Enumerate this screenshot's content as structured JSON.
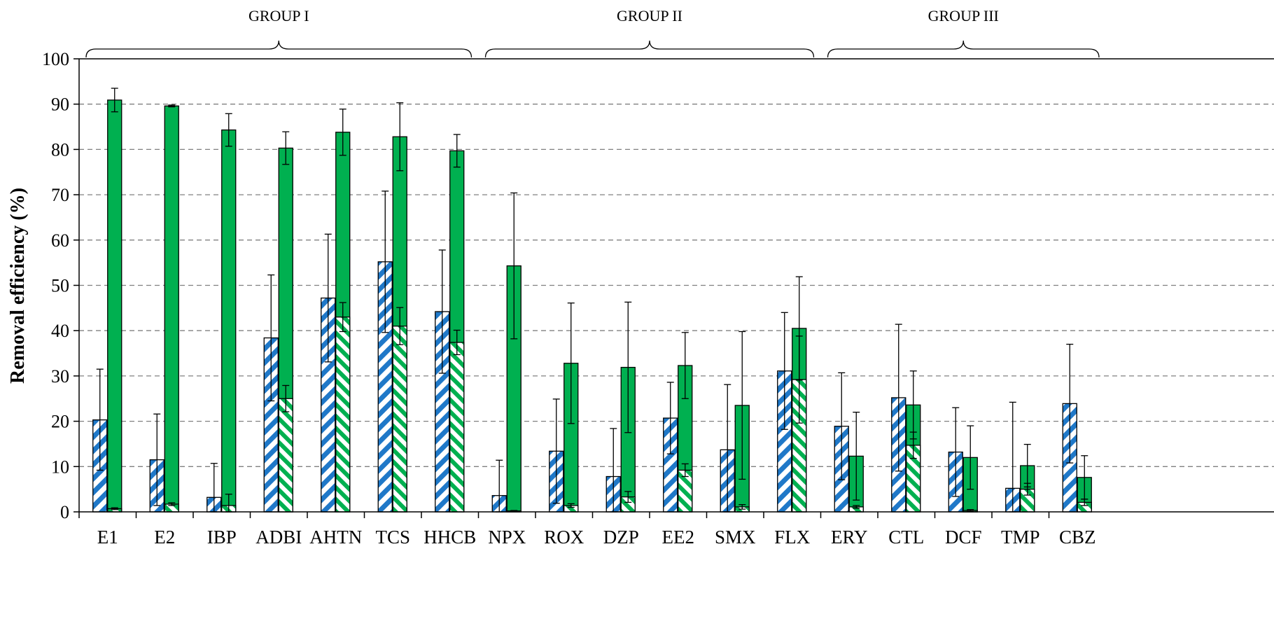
{
  "chart_data": {
    "type": "bar",
    "ylabel": "Removal efficiency (%)",
    "xlabel": "",
    "ylim": [
      0,
      100
    ],
    "yticks": [
      0,
      10,
      20,
      30,
      40,
      50,
      60,
      70,
      80,
      90,
      100
    ],
    "grid": "horizontal dashed",
    "categories": [
      "E1",
      "E2",
      "IBP",
      "ADBI",
      "AHTN",
      "TCS",
      "HHCB",
      "NPX",
      "ROX",
      "DZP",
      "EE2",
      "SMX",
      "FLX",
      "ERY",
      "CTL",
      "DCF",
      "TMP",
      "CBZ"
    ],
    "groups": [
      {
        "label": "GROUP I",
        "from": 0,
        "to": 6
      },
      {
        "label": "GROUP II",
        "from": 7,
        "to": 12
      },
      {
        "label": "GROUP III",
        "from": 13,
        "to": 17
      }
    ],
    "series": [
      {
        "pattern": "blue-hatched",
        "values": [
          20.3,
          11.5,
          3.2,
          38.4,
          47.2,
          55.2,
          44.2,
          3.6,
          13.4,
          7.8,
          20.7,
          13.7,
          31.1,
          18.9,
          25.2,
          13.2,
          5.2,
          23.9
        ],
        "err_high": [
          31.5,
          21.6,
          10.7,
          52.3,
          61.3,
          70.8,
          57.8,
          11.4,
          24.9,
          18.4,
          28.6,
          28.1,
          44.0,
          30.7,
          41.4,
          23.0,
          24.2,
          37.0
        ],
        "err_low": [
          9.2,
          1.4,
          0.0,
          24.5,
          33.1,
          39.6,
          30.6,
          0.0,
          1.9,
          0.0,
          12.8,
          0.0,
          18.2,
          7.1,
          9.0,
          3.4,
          0.0,
          10.8
        ]
      },
      {
        "pattern": "green-hatched",
        "values": [
          0.7,
          1.7,
          1.4,
          25.0,
          43.0,
          41.0,
          37.4,
          0.2,
          1.4,
          3.3,
          9.2,
          1.1,
          29.2,
          1.1,
          14.7,
          0.3,
          5.0,
          2.1
        ],
        "err_high": [
          0.9,
          2.0,
          3.9,
          27.9,
          46.2,
          45.1,
          40.1,
          0.3,
          1.8,
          4.5,
          10.6,
          1.6,
          38.8,
          1.4,
          17.6,
          0.5,
          6.3,
          2.8
        ],
        "err_low": [
          0.5,
          1.4,
          0.0,
          22.1,
          39.8,
          36.9,
          34.7,
          0.1,
          1.0,
          2.1,
          7.8,
          0.6,
          19.6,
          0.8,
          11.8,
          0.1,
          3.7,
          1.4
        ]
      },
      {
        "pattern": "green-solid",
        "values": [
          90.9,
          89.6,
          84.3,
          80.3,
          83.8,
          82.8,
          79.7,
          54.3,
          32.8,
          31.9,
          32.3,
          23.5,
          40.5,
          12.3,
          23.6,
          12.0,
          10.2,
          7.6
        ],
        "err_high": [
          93.5,
          89.8,
          87.9,
          83.9,
          88.9,
          90.3,
          83.3,
          70.4,
          46.1,
          46.3,
          39.6,
          39.8,
          51.9,
          22.0,
          31.1,
          19.0,
          14.9,
          12.4
        ],
        "err_low": [
          88.3,
          89.4,
          80.7,
          76.7,
          78.7,
          75.3,
          76.1,
          38.2,
          19.5,
          17.5,
          25.0,
          7.2,
          29.1,
          2.6,
          16.1,
          5.0,
          5.5,
          2.8
        ]
      }
    ]
  },
  "colors": {
    "blue": "#1f78c8",
    "green": "#00b050",
    "grid": "#808080",
    "axis": "#000000"
  }
}
